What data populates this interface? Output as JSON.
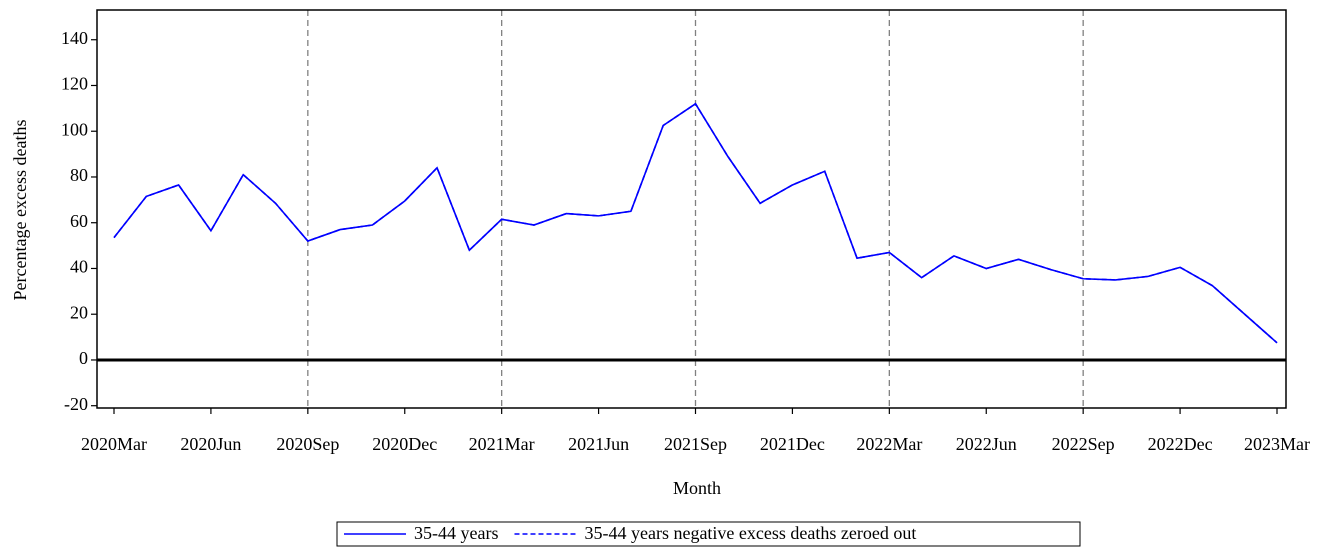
{
  "chart_data": {
    "type": "line",
    "y_label": "Percentage excess deaths",
    "x_label": "Month",
    "categories": [
      "2020Mar",
      null,
      null,
      "2020Jun",
      null,
      null,
      "2020Sep",
      null,
      null,
      "2020Dec",
      null,
      null,
      "2021Mar",
      null,
      null,
      "2021Jun",
      null,
      null,
      "2021Sep",
      null,
      null,
      "2021Dec",
      null,
      null,
      "2022Mar",
      null,
      null,
      "2022Jun",
      null,
      null,
      "2022Sep",
      null,
      null,
      "2022Dec",
      null,
      null,
      "2023Mar"
    ],
    "series": [
      {
        "name": "35-44 years",
        "color": "#0000ff",
        "dash": false,
        "values": [
          53.5,
          71.5,
          76.5,
          56.5,
          81,
          68.5,
          52,
          57,
          59,
          69.5,
          84,
          48,
          61.5,
          59,
          64,
          63,
          65,
          102.5,
          112,
          89,
          68.5,
          76.5,
          82.5,
          44.5,
          47,
          36,
          45.5,
          40,
          44,
          39.5,
          35.5,
          35,
          36.5,
          40.5,
          32.5,
          20,
          7.5
        ]
      },
      {
        "name": "35-44 years negative excess deaths zeroed out",
        "color": "#0000ff",
        "dash": true,
        "values": [
          53.5,
          71.5,
          76.5,
          56.5,
          81,
          68.5,
          52,
          57,
          59,
          69.5,
          84,
          48,
          61.5,
          59,
          64,
          63,
          65,
          102.5,
          112,
          89,
          68.5,
          76.5,
          82.5,
          44.5,
          47,
          36,
          45.5,
          40,
          44,
          39.5,
          35.5,
          35,
          36.5,
          40.5,
          32.5,
          20,
          7.5
        ]
      }
    ],
    "ylim": [
      -21,
      153
    ],
    "yticks": [
      -20,
      0,
      20,
      40,
      60,
      80,
      100,
      120,
      140
    ],
    "reference_x": [
      "2020Sep",
      "2021Mar",
      "2021Sep",
      "2022Mar",
      "2022Sep"
    ],
    "reference_y": 0,
    "legend": "bottom"
  }
}
